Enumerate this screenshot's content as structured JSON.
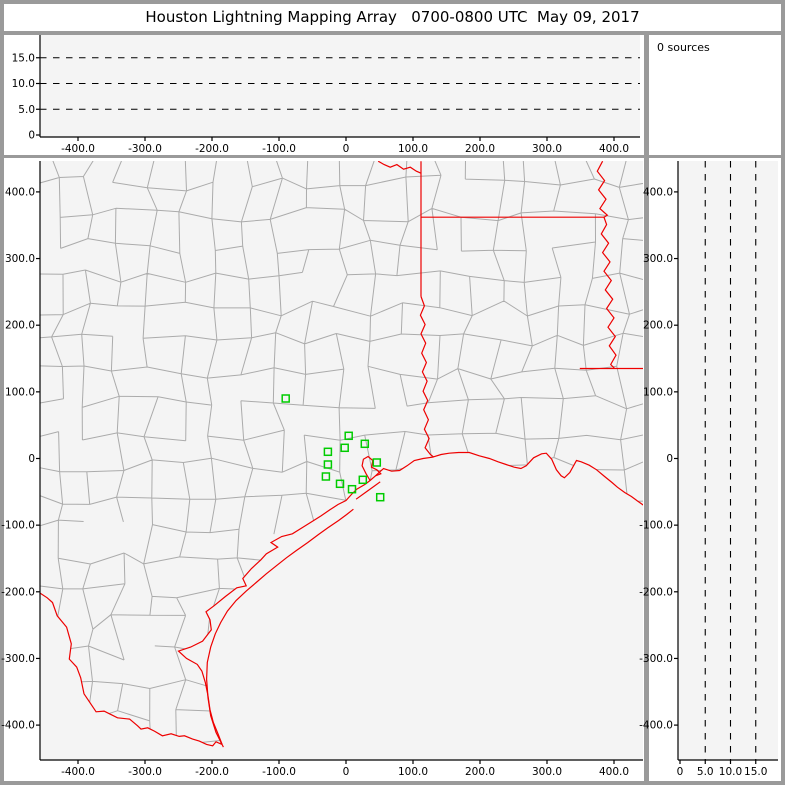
{
  "window": {
    "title": "Houston Lightning Mapping Array   0700-0800 UTC  May 09, 2017"
  },
  "sources_panel": {
    "label": "0 sources"
  },
  "colors": {
    "frame_gray": "#9a9a9a",
    "panel_white": "#ffffff",
    "plot_bg": "#f4f4f4",
    "county_line": "#ababab",
    "state_border_red": "#ee0000",
    "station_green": "#00cc00",
    "axis_black": "#000000"
  },
  "chart_data": [
    {
      "name": "altitude-vs-east-west",
      "type": "scatter",
      "title": "",
      "points": [],
      "num_sources": 0,
      "x_tick_values": [
        -400,
        -300,
        -200,
        -100,
        0,
        100,
        200,
        300,
        400
      ],
      "x_tick_labels": [
        "-400.0",
        "-300.0",
        "-200.0",
        "-100.0",
        "0",
        "100.0",
        "200.0",
        "300.0",
        "400.0"
      ],
      "y_tick_values": [
        0,
        5,
        10,
        15
      ],
      "y_tick_labels": [
        "0",
        "5.0",
        "10.0",
        "15.0"
      ],
      "dashed_hlines": [
        5,
        10,
        15
      ],
      "xlim": [
        -457,
        444
      ],
      "ylim": [
        0,
        19.8
      ],
      "grid": "dashed-horizontal",
      "legend": "none"
    },
    {
      "name": "plan-view-map",
      "type": "scatter",
      "title": "",
      "points": [],
      "marker": "open-square",
      "stations_km": [
        [
          -90,
          90
        ],
        [
          4,
          34
        ],
        [
          -27,
          10
        ],
        [
          -2,
          16
        ],
        [
          28,
          22
        ],
        [
          -27,
          -9
        ],
        [
          46,
          -6
        ],
        [
          -30,
          -27
        ],
        [
          -9,
          -38
        ],
        [
          25,
          -32
        ],
        [
          9,
          -46
        ],
        [
          51,
          -58
        ]
      ],
      "x_tick_values": [
        -400,
        -300,
        -200,
        -100,
        0,
        100,
        200,
        300,
        400
      ],
      "x_tick_labels": [
        "-400.0",
        "-300.0",
        "-200.0",
        "-100.0",
        "0",
        "100.0",
        "200.0",
        "300.0",
        "400.0"
      ],
      "y_tick_values": [
        400,
        300,
        200,
        100,
        0,
        -100,
        -200,
        -300,
        -400
      ],
      "y_tick_labels": [
        "400.0",
        "300.0",
        "200.0",
        "100.0",
        "0",
        "-100.0",
        "-200.0",
        "-300.0",
        "-400.0"
      ],
      "xlim": [
        -457,
        444
      ],
      "ylim": [
        -453,
        446
      ],
      "grid": "off",
      "legend": "none"
    },
    {
      "name": "altitude-vs-north-south",
      "type": "scatter",
      "title": "",
      "points": [],
      "x_tick_values": [
        0,
        5,
        10,
        15
      ],
      "x_tick_labels": [
        "0",
        "5.0",
        "10.0",
        "15.0"
      ],
      "y_tick_values": [
        400,
        300,
        200,
        100,
        0,
        -100,
        -200,
        -300,
        -400
      ],
      "y_tick_labels": [
        "400.0",
        "300.0",
        "200.0",
        "100.0",
        "0",
        "-100.0",
        "-200.0",
        "-300.0",
        "-400.0"
      ],
      "dashed_vlines": [
        5,
        10,
        15
      ],
      "xlim": [
        0,
        19.8
      ],
      "ylim": [
        -453,
        446
      ],
      "grid": "dashed-vertical",
      "legend": "none"
    }
  ],
  "map_geometry_km": {
    "rio_grande": [
      [
        -458,
        -201
      ],
      [
        -446,
        -209
      ],
      [
        -438,
        -216
      ],
      [
        -431,
        -236
      ],
      [
        -417,
        -253
      ],
      [
        -410,
        -278
      ],
      [
        -413,
        -301
      ],
      [
        -402,
        -313
      ],
      [
        -396,
        -329
      ],
      [
        -391,
        -353
      ],
      [
        -383,
        -365
      ],
      [
        -373,
        -380
      ],
      [
        -361,
        -379
      ],
      [
        -353,
        -383
      ],
      [
        -341,
        -389
      ],
      [
        -323,
        -391
      ],
      [
        -311,
        -401
      ],
      [
        -306,
        -406
      ],
      [
        -296,
        -404
      ],
      [
        -286,
        -409
      ],
      [
        -274,
        -416
      ],
      [
        -261,
        -413
      ],
      [
        -249,
        -417
      ],
      [
        -241,
        -416
      ],
      [
        -229,
        -421
      ],
      [
        -219,
        -424
      ],
      [
        -208,
        -429
      ],
      [
        -199,
        -431
      ],
      [
        -194,
        -425
      ],
      [
        -185,
        -429
      ]
    ],
    "gulf_coast": [
      [
        -185,
        -429
      ],
      [
        -191,
        -413
      ],
      [
        -198,
        -396
      ],
      [
        -203,
        -377
      ],
      [
        -206,
        -356
      ],
      [
        -210,
        -336
      ],
      [
        -215,
        -319
      ],
      [
        -222,
        -309
      ],
      [
        -238,
        -300
      ],
      [
        -250,
        -289
      ],
      [
        -232,
        -283
      ],
      [
        -214,
        -274
      ],
      [
        -201,
        -257
      ],
      [
        -203,
        -242
      ],
      [
        -209,
        -230
      ],
      [
        -197,
        -221
      ],
      [
        -180,
        -207
      ],
      [
        -163,
        -194
      ],
      [
        -149,
        -191
      ],
      [
        -154,
        -180
      ],
      [
        -141,
        -165
      ],
      [
        -127,
        -152
      ],
      [
        -119,
        -143
      ],
      [
        -102,
        -133
      ],
      [
        -112,
        -126
      ],
      [
        -96,
        -117
      ],
      [
        -80,
        -113
      ],
      [
        -64,
        -103
      ],
      [
        -50,
        -94
      ],
      [
        -37,
        -86
      ],
      [
        -24,
        -77
      ],
      [
        -12,
        -69
      ],
      [
        0,
        -63
      ],
      [
        8,
        -54
      ],
      [
        16,
        -46
      ],
      [
        28,
        -39
      ],
      [
        36,
        -33
      ],
      [
        44,
        -26
      ],
      [
        56,
        -15
      ],
      [
        68,
        -19
      ],
      [
        80,
        -18
      ],
      [
        91,
        -11
      ],
      [
        102,
        -3
      ],
      [
        115,
        0
      ],
      [
        129,
        2
      ],
      [
        142,
        6
      ],
      [
        154,
        8
      ],
      [
        168,
        9
      ],
      [
        184,
        9
      ],
      [
        199,
        4
      ],
      [
        214,
        0
      ],
      [
        227,
        -5
      ],
      [
        239,
        -9
      ],
      [
        251,
        -13
      ],
      [
        261,
        -15
      ],
      [
        269,
        -11
      ],
      [
        280,
        1
      ],
      [
        292,
        7
      ],
      [
        299,
        8
      ],
      [
        307,
        -1
      ],
      [
        314,
        -17
      ],
      [
        321,
        -26
      ],
      [
        326,
        -29
      ],
      [
        334,
        -21
      ],
      [
        344,
        -3
      ],
      [
        351,
        -5
      ],
      [
        363,
        -10
      ],
      [
        374,
        -17
      ],
      [
        386,
        -27
      ],
      [
        397,
        -36
      ],
      [
        405,
        -43
      ],
      [
        416,
        -51
      ],
      [
        426,
        -57
      ],
      [
        434,
        -63
      ],
      [
        444,
        -70
      ]
    ],
    "barrier_islands": [
      [
        -183,
        -433
      ],
      [
        -194,
        -411
      ],
      [
        -202,
        -386
      ],
      [
        -206,
        -359
      ],
      [
        -208,
        -331
      ],
      [
        -207,
        -306
      ],
      [
        -202,
        -283
      ],
      [
        -195,
        -263
      ],
      [
        -187,
        -246
      ],
      [
        -177,
        -229
      ],
      [
        -164,
        -213
      ],
      [
        -149,
        -199
      ],
      [
        -134,
        -186
      ],
      [
        -119,
        -173
      ],
      [
        -104,
        -161
      ],
      [
        -89,
        -149
      ],
      [
        -74,
        -138
      ],
      [
        -57,
        -126
      ],
      [
        -41,
        -114
      ],
      [
        -27,
        -104
      ],
      [
        -11,
        -93
      ],
      [
        1,
        -84
      ],
      [
        11,
        -76
      ]
    ],
    "galveston_island": [
      [
        15,
        -61
      ],
      [
        29,
        -51
      ],
      [
        43,
        -41
      ],
      [
        51,
        -35
      ]
    ],
    "galveston_bay": [
      [
        36,
        -33
      ],
      [
        30,
        -23
      ],
      [
        24,
        -11
      ],
      [
        26,
        -1
      ],
      [
        33,
        3
      ],
      [
        40,
        -3
      ],
      [
        38,
        -13
      ],
      [
        46,
        -17
      ],
      [
        52,
        -23
      ],
      [
        44,
        -26
      ]
    ],
    "red_river": [
      [
        48,
        446
      ],
      [
        57,
        441
      ],
      [
        66,
        437
      ],
      [
        76,
        441
      ],
      [
        86,
        434
      ],
      [
        96,
        437
      ],
      [
        105,
        431
      ],
      [
        112,
        428
      ]
    ],
    "tx_ar_border": [
      [
        112,
        446
      ],
      [
        112,
        243
      ]
    ],
    "ar_la_border": [
      [
        112,
        362
      ],
      [
        385,
        362
      ]
    ],
    "sabine_river": [
      [
        112,
        243
      ],
      [
        117,
        229
      ],
      [
        111,
        215
      ],
      [
        118,
        201
      ],
      [
        112,
        187
      ],
      [
        119,
        173
      ],
      [
        113,
        158
      ],
      [
        120,
        144
      ],
      [
        114,
        130
      ],
      [
        121,
        116
      ],
      [
        115,
        101
      ],
      [
        122,
        87
      ],
      [
        116,
        73
      ],
      [
        123,
        58
      ],
      [
        117,
        44
      ],
      [
        124,
        30
      ],
      [
        118,
        16
      ],
      [
        126,
        6
      ],
      [
        131,
        2
      ]
    ],
    "mississippi_river": [
      [
        383,
        446
      ],
      [
        375,
        431
      ],
      [
        386,
        417
      ],
      [
        377,
        403
      ],
      [
        388,
        389
      ],
      [
        379,
        375
      ],
      [
        390,
        365
      ],
      [
        385,
        362
      ],
      [
        389,
        351
      ],
      [
        381,
        337
      ],
      [
        392,
        323
      ],
      [
        383,
        309
      ],
      [
        394,
        295
      ],
      [
        385,
        281
      ],
      [
        396,
        267
      ],
      [
        387,
        253
      ],
      [
        398,
        239
      ],
      [
        389,
        225
      ],
      [
        400,
        211
      ],
      [
        391,
        197
      ],
      [
        402,
        183
      ],
      [
        393,
        169
      ],
      [
        403,
        155
      ],
      [
        395,
        141
      ],
      [
        401,
        135
      ]
    ],
    "la_ms_border": [
      [
        349,
        135
      ],
      [
        445,
        135
      ]
    ]
  }
}
